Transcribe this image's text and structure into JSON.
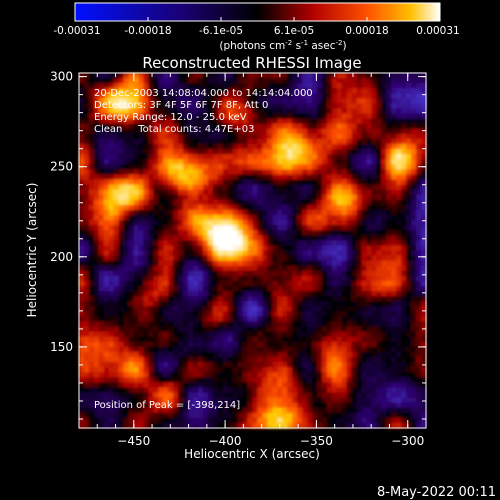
{
  "chart_data": {
    "type": "heatmap",
    "title": "Reconstructed RHESSI Image",
    "xlabel": "Heliocentric X (arcsec)",
    "ylabel": "Heliocentric Y (arcsec)",
    "xlim": [
      -480,
      -290
    ],
    "ylim": [
      105,
      302
    ],
    "xticks": [
      -450,
      -400,
      -350,
      -300
    ],
    "yticks": [
      150,
      200,
      250,
      300
    ],
    "colorbar": {
      "min": -0.00031,
      "max": 0.00031,
      "ticks": [
        "-0.00031",
        "-0.00018",
        "-6.1e-05",
        "6.1e-05",
        "0.00018",
        "0.00031"
      ],
      "unit_prefix": "(photons cm",
      "unit_suffix": " asec"
    },
    "info_lines": [
      "20-Dec-2003 14:08:04.000 to 14:14:04.000",
      "Detectors: 3F 4F 5F 6F 7F 8F, Att 0",
      "Energy Range: 12.0 - 25.0 keV",
      "Clean     Total counts: 4.47E+03"
    ],
    "peak_label": "Position of Peak = [-398,214]",
    "sources": [
      {
        "x": -400,
        "y": 213,
        "intensity": 1.0
      },
      {
        "x": -420,
        "y": 245,
        "intensity": 0.85
      },
      {
        "x": -455,
        "y": 233,
        "intensity": 0.6
      },
      {
        "x": -370,
        "y": 120,
        "intensity": 0.95
      },
      {
        "x": -345,
        "y": 140,
        "intensity": 0.55
      },
      {
        "x": -460,
        "y": 285,
        "intensity": 0.75
      },
      {
        "x": -395,
        "y": 280,
        "intensity": 0.6
      },
      {
        "x": -335,
        "y": 225,
        "intensity": 0.65
      },
      {
        "x": -360,
        "y": 262,
        "intensity": 0.55
      },
      {
        "x": -440,
        "y": 175,
        "intensity": 0.5
      },
      {
        "x": -465,
        "y": 140,
        "intensity": 0.5
      },
      {
        "x": -320,
        "y": 185,
        "intensity": 0.45
      },
      {
        "x": -410,
        "y": 160,
        "intensity": 0.4
      },
      {
        "x": -300,
        "y": 255,
        "intensity": 0.5
      },
      {
        "x": -430,
        "y": 125,
        "intensity": 0.4
      }
    ]
  },
  "footer": {
    "timestamp": "8-May-2022 00:11"
  }
}
